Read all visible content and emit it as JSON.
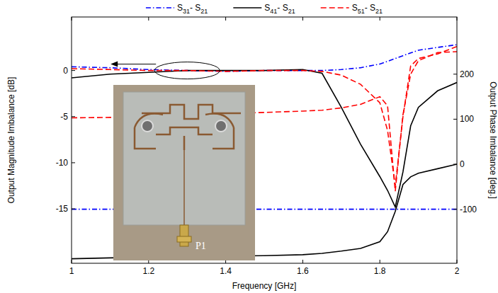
{
  "chart_data": {
    "type": "line",
    "x_label": "Frequency [GHz]",
    "y_label": "Output Magnitude Imbalance [dB]",
    "y2_label": "Output Phase Imbalance [deg.]",
    "x": [
      1,
      1.1,
      1.2,
      1.3,
      1.4,
      1.5,
      1.6,
      1.65,
      1.7,
      1.75,
      1.8,
      1.82,
      1.84,
      1.86,
      1.88,
      1.9,
      1.95,
      2.0
    ],
    "series": [
      {
        "name": "S31- S21",
        "color": "#0000ff",
        "line_style": "dashdot",
        "values": [
          0.4,
          0.3,
          0.1,
          0,
          -0.1,
          0,
          0,
          0,
          0.1,
          0.3,
          0.7,
          1.0,
          1.3,
          1.6,
          1.9,
          2.2,
          2.5,
          2.8
        ]
      },
      {
        "name": "S41- S21",
        "color": "#000000",
        "line_style": "solid",
        "values": [
          -0.8,
          -0.4,
          -0.2,
          0,
          0,
          0,
          0.1,
          -0.3,
          -4,
          -8,
          -11.5,
          -13,
          -14.8,
          -11,
          -6,
          -4,
          -2.2,
          -1.3
        ]
      },
      {
        "name": "S51- S21",
        "color": "#ff0000",
        "line_style": "dashed",
        "values": [
          0.2,
          0.1,
          0,
          0,
          -0.1,
          0,
          0,
          -0.1,
          -0.5,
          -1.5,
          -3.5,
          -6.5,
          -12.5,
          -5,
          0.5,
          1.3,
          1.8,
          2.6
        ]
      },
      {
        "name": "S31- S21",
        "color": "#0000ff",
        "line_style": "dashdot",
        "axis": "y2",
        "values": [
          -100,
          -100,
          -100,
          -100,
          -100,
          -100,
          -100,
          -100,
          -100,
          -100,
          -100,
          -100,
          -100,
          -100,
          -100,
          -100,
          -100,
          -100
        ]
      },
      {
        "name": "S41- S21",
        "color": "#000000",
        "line_style": "solid",
        "axis": "y2",
        "values": [
          -210,
          -208,
          -206,
          -205,
          -204,
          -203,
          -201,
          -198,
          -193,
          -187,
          -172,
          -150,
          -105,
          -45,
          -28,
          -20,
          -10,
          0
        ]
      },
      {
        "name": "S51- S21",
        "color": "#ff0000",
        "line_style": "dashed",
        "axis": "y2",
        "values": [
          103,
          104,
          106,
          108,
          112,
          115,
          118,
          120,
          125,
          133,
          150,
          130,
          -60,
          110,
          200,
          230,
          248,
          250
        ]
      }
    ],
    "xlim": [
      1,
      2
    ],
    "xticks": [
      1,
      1.2,
      1.4,
      1.6,
      1.8,
      2
    ],
    "ylim": [
      -20.9,
      5.8
    ],
    "yticks": [
      -15,
      -10,
      -5,
      0
    ],
    "y2lim": [
      -220,
      327
    ],
    "y2ticks": [
      -100,
      0,
      100,
      200
    ],
    "grid": false,
    "legend": "top",
    "annotations": [
      "P1"
    ]
  }
}
